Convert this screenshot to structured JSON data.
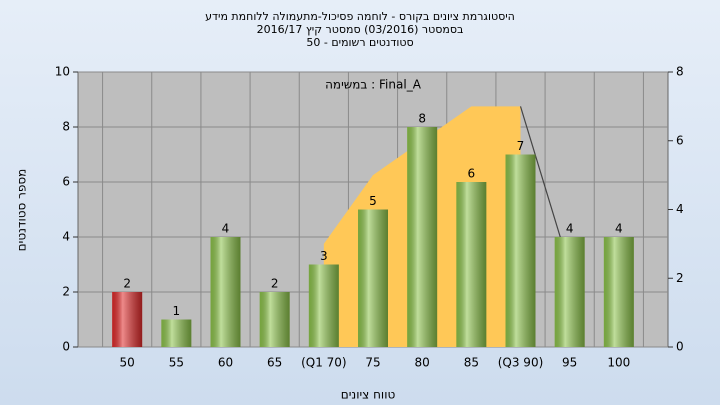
{
  "chart_data": {
    "type": "bar",
    "title_lines": [
      "היסטוגרמת ציונים בקורס - לוחמה פסיכול-מתעמולה ללוחמת מידע",
      "בסמסטר (03/2016) סמסטר קיץ 2016/17",
      "סטודנטים רשומים - 50"
    ],
    "annotation": "במשימה : Final_A",
    "x_label": "טווח ציונים",
    "y_label": "מספר סטודנטים",
    "categories": [
      "50",
      "55",
      "60",
      "65",
      "(Q1 70)",
      "75",
      "80",
      "85",
      "(Q3 90)",
      "95",
      "100"
    ],
    "values": [
      2,
      1,
      4,
      2,
      3,
      5,
      8,
      6,
      7,
      4,
      4
    ],
    "colors": [
      "#e02a2a",
      "#8cc34a",
      "#8cc34a",
      "#8cc34a",
      "#8cc34a",
      "#8cc34a",
      "#8cc34a",
      "#8cc34a",
      "#8cc34a",
      "#8cc34a",
      "#8cc34a"
    ],
    "series": [
      {
        "type": "area",
        "axis": "y2",
        "color": "#ffc857",
        "values": [
          null,
          null,
          null,
          null,
          3,
          5,
          6,
          7,
          7,
          null,
          null
        ]
      },
      {
        "type": "line",
        "axis": "y2",
        "color": "#444444",
        "values": [
          null,
          null,
          null,
          null,
          null,
          null,
          null,
          null,
          7,
          2.3,
          null
        ]
      }
    ],
    "ylim": [
      0,
      10
    ],
    "yticks": [
      0,
      2,
      4,
      6,
      8,
      10
    ],
    "y2lim": [
      0,
      8
    ],
    "y2ticks": [
      0,
      2,
      4,
      6,
      8
    ],
    "grid": true
  }
}
